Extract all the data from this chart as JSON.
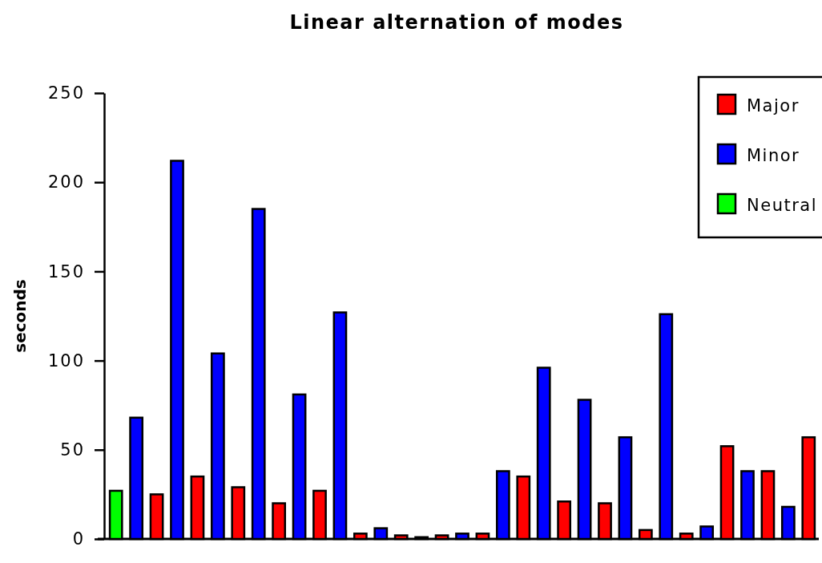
{
  "chart_data": {
    "type": "bar",
    "title": "Linear alternation of modes",
    "ylabel": "seconds",
    "categories": [
      null,
      null,
      null,
      null,
      null,
      null,
      null,
      null,
      null,
      null,
      null,
      null,
      null,
      null,
      null,
      null,
      null,
      null,
      null,
      null,
      null,
      null,
      null,
      null,
      null,
      null,
      null,
      null,
      null,
      null,
      null,
      null,
      null,
      null,
      null
    ],
    "series": [
      {
        "name": "Major",
        "color": "#ff0000",
        "values": [
          null,
          null,
          25,
          null,
          35,
          null,
          29,
          null,
          20,
          null,
          27,
          null,
          3,
          null,
          2,
          null,
          2,
          null,
          3,
          null,
          35,
          null,
          21,
          null,
          20,
          null,
          5,
          null,
          3,
          null,
          52,
          null,
          38,
          null,
          57
        ]
      },
      {
        "name": "Minor",
        "color": "#0000ff",
        "values": [
          null,
          68,
          null,
          212,
          null,
          104,
          null,
          185,
          null,
          81,
          null,
          127,
          null,
          6,
          null,
          1,
          null,
          3,
          null,
          38,
          null,
          96,
          null,
          78,
          null,
          57,
          null,
          126,
          null,
          7,
          null,
          38,
          null,
          18,
          null
        ]
      },
      {
        "name": "Neutral",
        "color": "#00ff00",
        "values": [
          27,
          null,
          null,
          null,
          null,
          null,
          null,
          null,
          null,
          null,
          null,
          null,
          null,
          null,
          null,
          null,
          null,
          null,
          null,
          null,
          null,
          null,
          null,
          null,
          null,
          null,
          null,
          null,
          null,
          null,
          null,
          null,
          null,
          null,
          null
        ]
      }
    ],
    "ylim": [
      0,
      250
    ],
    "yticks": [
      0,
      50,
      100,
      150,
      200,
      250
    ],
    "grid": false,
    "legend": "top right"
  }
}
